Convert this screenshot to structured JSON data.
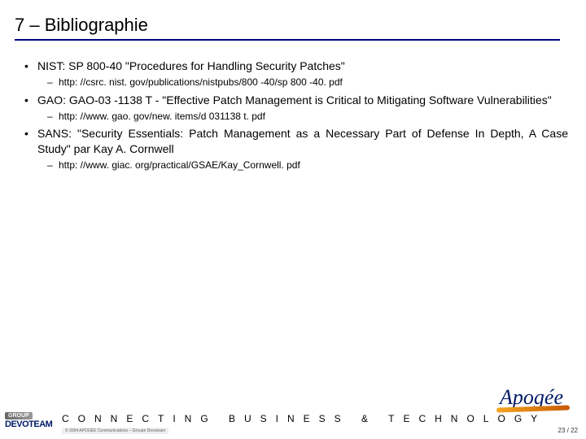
{
  "title": "7 – Bibliographie",
  "items": [
    {
      "text": "NIST: SP 800-40 \"Procedures for Handling Security Patches\"",
      "justify": false,
      "url": "http: //csrc. nist. gov/publications/nistpubs/800 -40/sp 800 -40. pdf"
    },
    {
      "text": "GAO: GAO-03 -1138 T - \"Effective Patch Management is Critical to Mitigating Software Vulnerabilities\"",
      "justify": false,
      "url": "http: //www. gao. gov/new. items/d 031138 t. pdf"
    },
    {
      "text": "SANS: \"Security Essentials: Patch Management as a Necessary Part of Defense In Depth, A Case Study\" par Kay A. Cornwell",
      "justify": true,
      "url": "http: //www. giac. org/practical/GSAE/Kay_Cornwell. pdf"
    }
  ],
  "footer": {
    "tagline": "CONNECTING BUSINESS & TECHNOLOGY",
    "logo_group": "GROUP",
    "logo_name": "DEVOTEAM",
    "logo_right": "Apogée",
    "copyright": "© 2004 APOGÉE Communications – Groupe Devoteam",
    "page": "23 / 22"
  },
  "colors": {
    "underline": "#000080",
    "text": "#000000",
    "logo_blue": "#001a66"
  }
}
